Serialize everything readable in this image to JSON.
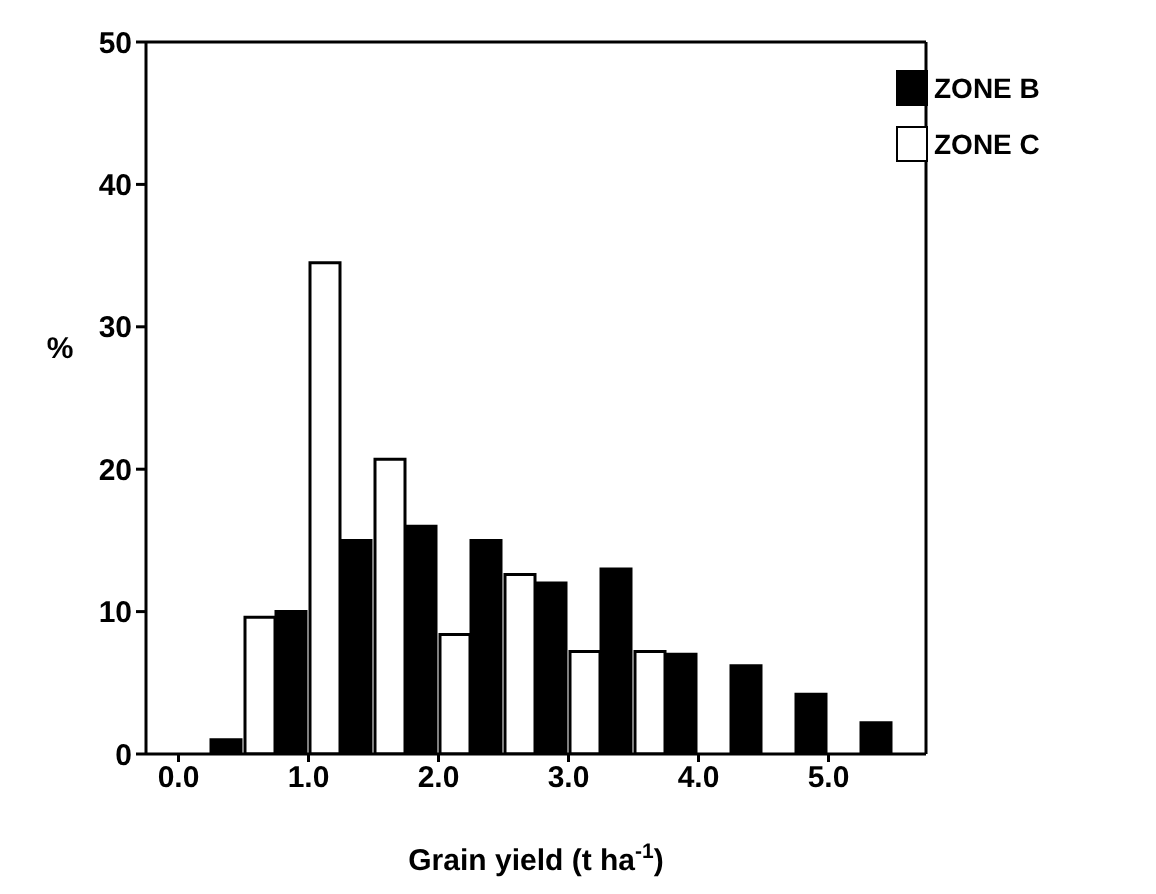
{
  "chart_data": {
    "type": "bar",
    "xlabel": "Grain yield (t ha$^{-1}$)",
    "ylabel": "%",
    "x": [
      0.5,
      1.0,
      1.5,
      2.0,
      2.5,
      3.0,
      3.5,
      4.0,
      4.5,
      5.0,
      5.5
    ],
    "series": [
      {
        "name": "ZONE B",
        "color": "#000000",
        "values": [
          1,
          10,
          15,
          16,
          15,
          12,
          13,
          7,
          6.2,
          4.2,
          2.2
        ]
      },
      {
        "name": "ZONE C",
        "color": "#ffffff",
        "values": [
          9.6,
          34.5,
          20.7,
          8.4,
          12.6,
          7.2,
          7.2,
          null,
          null,
          null,
          null
        ]
      }
    ],
    "xlim": [
      -0.25,
      5.75
    ],
    "xticks": [
      {
        "value": 0,
        "label": "0.0"
      },
      {
        "value": 1,
        "label": "1.0"
      },
      {
        "value": 2,
        "label": "2.0"
      },
      {
        "value": 3,
        "label": "3.0"
      },
      {
        "value": 4,
        "label": "4.0"
      },
      {
        "value": 5,
        "label": "5.0"
      }
    ],
    "ylim": [
      0,
      50
    ],
    "yticks": [
      0,
      10,
      20,
      30,
      40,
      50
    ],
    "grid": false,
    "legend": "top right"
  }
}
